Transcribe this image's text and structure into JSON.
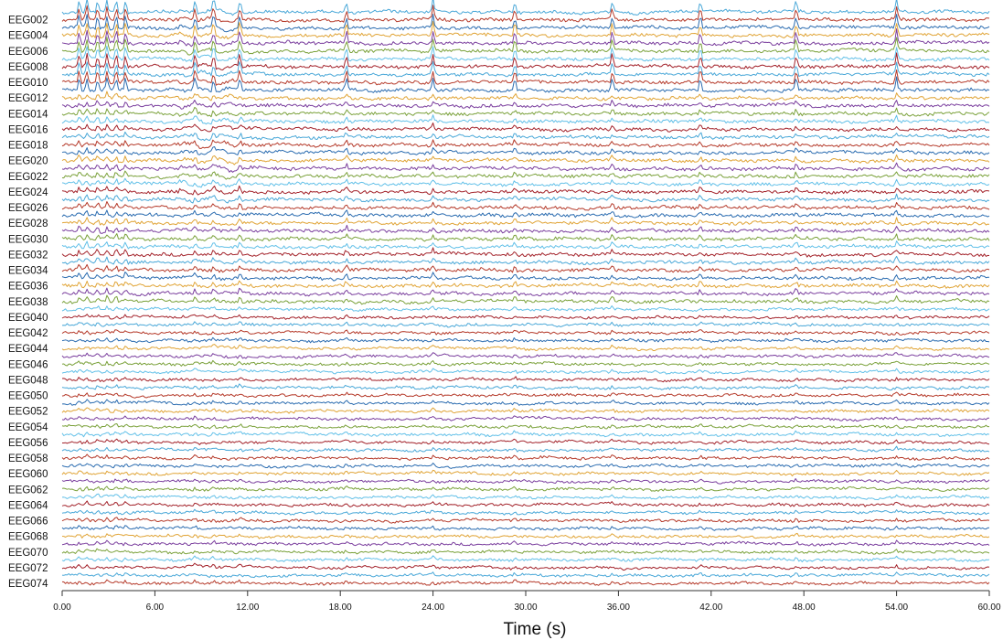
{
  "chart_data": {
    "type": "line",
    "xlabel": "Time (s)",
    "xlim": [
      0,
      60
    ],
    "x_ticks": [
      0,
      6,
      12,
      18,
      24,
      30,
      36,
      42,
      48,
      54,
      60
    ],
    "x_tick_labels": [
      "0.00",
      "6.00",
      "12.00",
      "18.00",
      "24.00",
      "30.00",
      "36.00",
      "42.00",
      "48.00",
      "54.00",
      "60.00"
    ],
    "channel_count": 74,
    "channel_labels_shown": [
      "EEG002",
      "EEG004",
      "EEG006",
      "EEG008",
      "EEG010",
      "EEG012",
      "EEG014",
      "EEG016",
      "EEG018",
      "EEG020",
      "EEG022",
      "EEG024",
      "EEG026",
      "EEG028",
      "EEG030",
      "EEG032",
      "EEG034",
      "EEG036",
      "EEG038",
      "EEG040",
      "EEG042",
      "EEG044",
      "EEG046",
      "EEG048",
      "EEG050",
      "EEG052",
      "EEG054",
      "EEG056",
      "EEG058",
      "EEG060",
      "EEG062",
      "EEG064",
      "EEG066",
      "EEG068",
      "EEG070",
      "EEG072",
      "EEG074"
    ],
    "series_colors": [
      "#4aa8d8",
      "#b53a2a",
      "#2b6cb0",
      "#e0a436",
      "#7b3f9e",
      "#7aa13a",
      "#62c0e8",
      "#a3222a"
    ],
    "events_s": [
      1.1,
      1.6,
      2.3,
      2.9,
      3.5,
      4.1,
      8.6,
      9.8,
      11.5,
      18.4,
      24.0,
      29.3,
      35.6,
      41.3,
      47.5,
      54.0
    ],
    "grid": false,
    "legend": "none"
  }
}
